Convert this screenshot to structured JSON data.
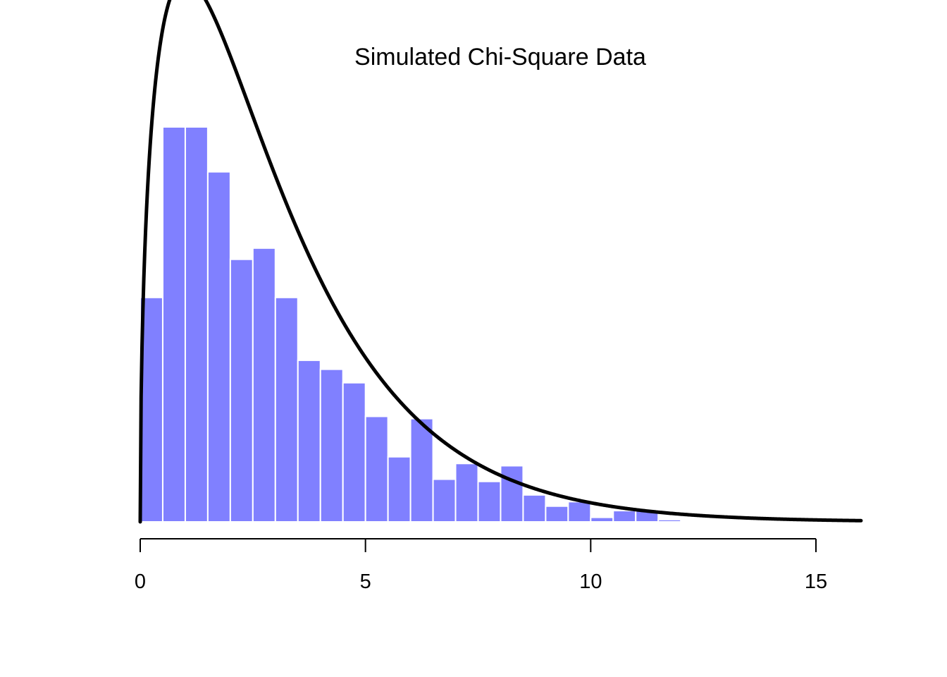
{
  "chart_data": {
    "type": "bar",
    "title": "Simulated Chi-Square Data",
    "xlabel": "",
    "ylabel": "",
    "xlim": [
      0,
      16
    ],
    "ylim": [
      0,
      0.176
    ],
    "x_ticks": [
      0,
      5,
      10,
      15
    ],
    "x_tick_labels": [
      "0",
      "5",
      "10",
      "15"
    ],
    "grid": false,
    "legend": "none",
    "bin_width": 0.5,
    "bins": [
      {
        "start": 0.0,
        "end": 0.5,
        "density": 0.1
      },
      {
        "start": 0.5,
        "end": 1.0,
        "density": 0.176
      },
      {
        "start": 1.0,
        "end": 1.5,
        "density": 0.176
      },
      {
        "start": 1.5,
        "end": 2.0,
        "density": 0.156
      },
      {
        "start": 2.0,
        "end": 2.5,
        "density": 0.117
      },
      {
        "start": 2.5,
        "end": 3.0,
        "density": 0.122
      },
      {
        "start": 3.0,
        "end": 3.5,
        "density": 0.1
      },
      {
        "start": 3.5,
        "end": 4.0,
        "density": 0.072
      },
      {
        "start": 4.0,
        "end": 4.5,
        "density": 0.068
      },
      {
        "start": 4.5,
        "end": 5.0,
        "density": 0.062
      },
      {
        "start": 5.0,
        "end": 5.5,
        "density": 0.047
      },
      {
        "start": 5.5,
        "end": 6.0,
        "density": 0.029
      },
      {
        "start": 6.0,
        "end": 6.5,
        "density": 0.046
      },
      {
        "start": 6.5,
        "end": 7.0,
        "density": 0.019
      },
      {
        "start": 7.0,
        "end": 7.5,
        "density": 0.026
      },
      {
        "start": 7.5,
        "end": 8.0,
        "density": 0.018
      },
      {
        "start": 8.0,
        "end": 8.5,
        "density": 0.025
      },
      {
        "start": 8.5,
        "end": 9.0,
        "density": 0.012
      },
      {
        "start": 9.0,
        "end": 9.5,
        "density": 0.007
      },
      {
        "start": 9.5,
        "end": 10.0,
        "density": 0.009
      },
      {
        "start": 10.0,
        "end": 10.5,
        "density": 0.002
      },
      {
        "start": 10.5,
        "end": 11.0,
        "density": 0.005
      },
      {
        "start": 11.0,
        "end": 11.5,
        "density": 0.005
      },
      {
        "start": 11.5,
        "end": 12.0,
        "density": 0.001
      }
    ],
    "curve": {
      "type": "chi-square density",
      "df": 3,
      "color": "#000000"
    },
    "colors": {
      "bar_fill": "#8080ff",
      "bar_border": "#ffffff",
      "axis": "#000000",
      "curve": "#000000"
    }
  }
}
